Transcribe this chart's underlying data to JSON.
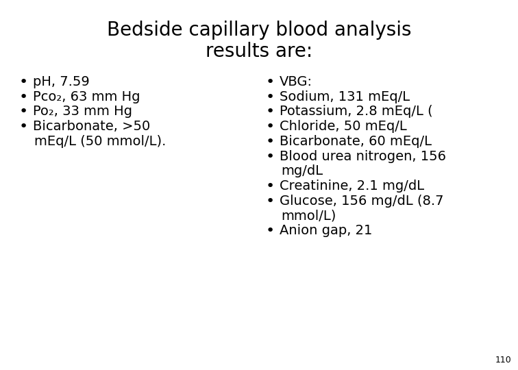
{
  "title_line1": "Bedside capillary blood analysis",
  "title_line2": "results are:",
  "title_fontsize": 20,
  "title_fontweight": "normal",
  "background_color": "#ffffff",
  "text_color": "#000000",
  "left_bullets": [
    "pH, 7.59",
    "Pco₂, 63 mm Hg",
    "Po₂, 33 mm Hg",
    "Bicarbonate, >50",
    "mEq/L (50 mmol/L)."
  ],
  "left_bullet_flags": [
    true,
    true,
    true,
    true,
    false
  ],
  "right_bullets": [
    "VBG:",
    "Sodium, 131 mEq/L",
    "Potassium, 2.8 mEq/L (",
    "Chloride, 50 mEq/L",
    "Bicarbonate, 60 mEq/L",
    "Blood urea nitrogen, 156",
    "mg/dL",
    "Creatinine, 2.1 mg/dL",
    "Glucose, 156 mg/dL (8.7",
    "mmol/L)",
    "Anion gap, 21"
  ],
  "right_bullet_flags": [
    true,
    true,
    true,
    true,
    true,
    true,
    false,
    true,
    true,
    false,
    true
  ],
  "bullet_fontsize": 14,
  "page_number": "110",
  "page_number_fontsize": 9,
  "fig_width": 7.56,
  "fig_height": 5.4,
  "dpi": 100
}
